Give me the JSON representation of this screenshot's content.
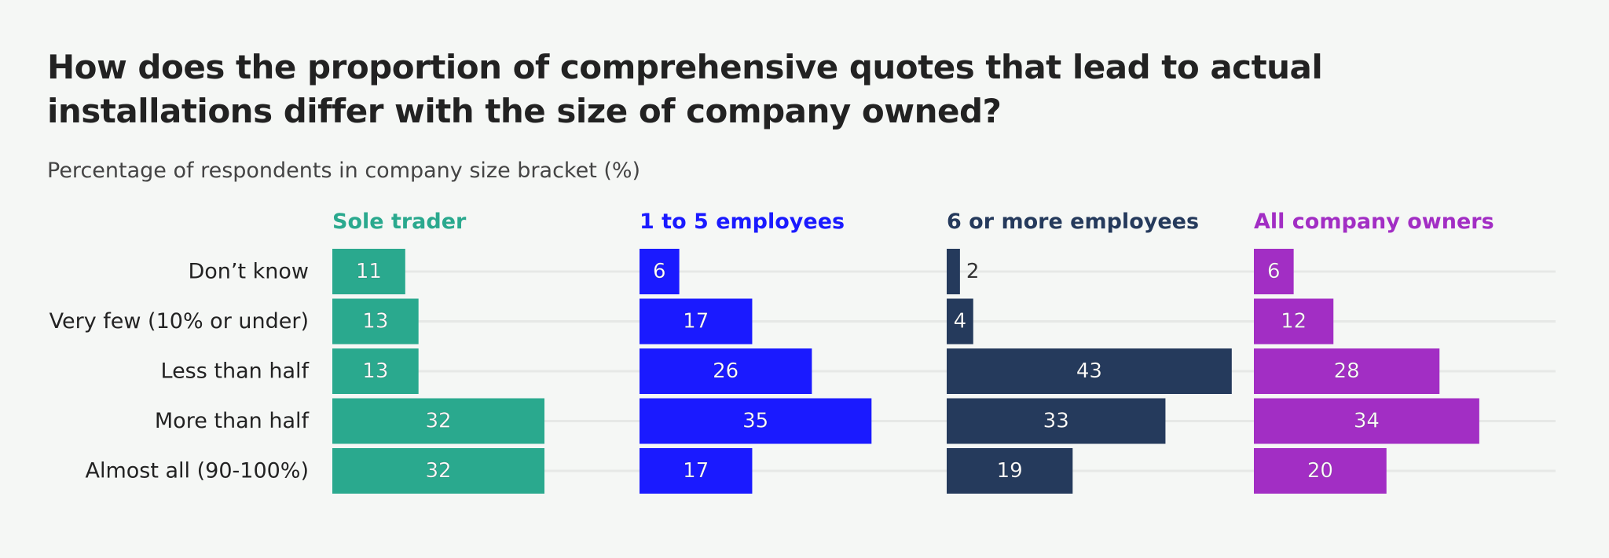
{
  "chart_data": {
    "type": "bar",
    "orientation": "horizontal",
    "layout": "small-multiples",
    "title": "How does the proportion of comprehensive quotes that lead to actual installations differ with the size of company owned?",
    "subtitle": "Percentage of respondents in company size bracket (%)",
    "categories": [
      "Don’t know",
      "Very few (10% or under)",
      "Less than half",
      "More than half",
      "Almost all (90-100%)"
    ],
    "series": [
      {
        "name": "Sole trader",
        "color": "#2aa98e",
        "values": [
          11,
          13,
          13,
          32,
          32
        ]
      },
      {
        "name": "1 to 5 employees",
        "color": "#1a1aff",
        "values": [
          6,
          17,
          26,
          35,
          17
        ]
      },
      {
        "name": "6 or more employees",
        "color": "#253a5c",
        "values": [
          2,
          4,
          43,
          33,
          19
        ]
      },
      {
        "name": "All company owners",
        "color": "#a22ec4",
        "values": [
          6,
          12,
          28,
          34,
          20
        ]
      }
    ],
    "xlim": [
      0,
      50
    ],
    "grid": true,
    "legend": "none"
  }
}
